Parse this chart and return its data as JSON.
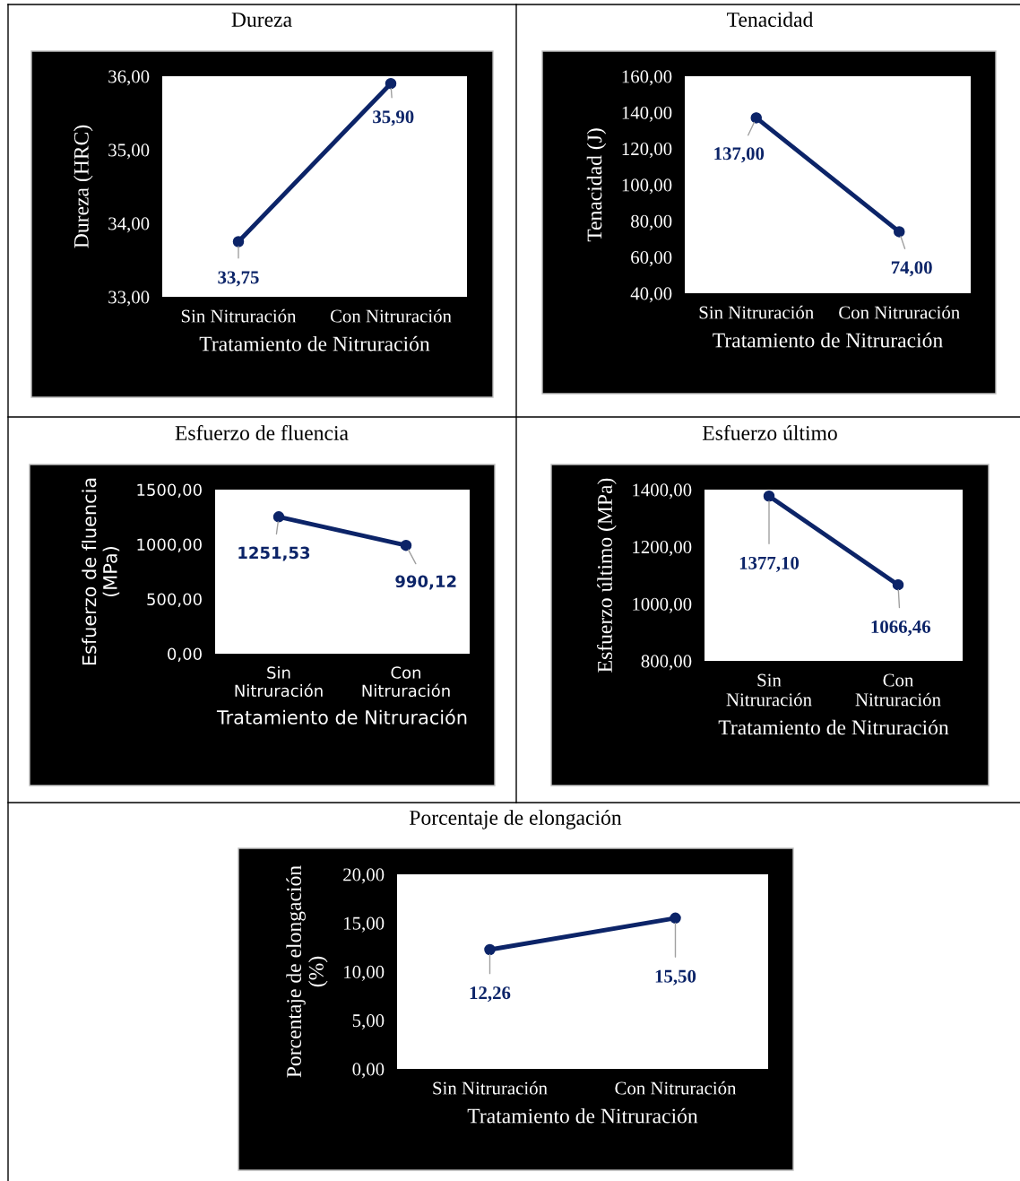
{
  "chart_data": [
    {
      "type": "line",
      "title": "Dureza",
      "xlabel": "Tratamiento de Nitruración",
      "ylabel": "Dureza (HRC)",
      "categories": [
        "Sin Nitruración",
        "Con Nitruración"
      ],
      "series": [
        {
          "color": "#0c2468",
          "values": [
            33.75,
            35.9
          ],
          "value_labels": [
            "33,75",
            "35,90"
          ]
        }
      ],
      "ylim": [
        33,
        36
      ],
      "yticks": [
        {
          "value": 33,
          "label": "33,00"
        },
        {
          "value": 34,
          "label": "34,00"
        },
        {
          "value": 35,
          "label": "35,00"
        },
        {
          "value": 36,
          "label": "36,00"
        }
      ],
      "marker": "circle",
      "line_style": "solid",
      "grid": false
    },
    {
      "type": "line",
      "title": "Tenacidad",
      "xlabel": "Tratamiento de Nitruración",
      "ylabel": "Tenacidad (J)",
      "categories": [
        "Sin Nitruración",
        "Con Nitruración"
      ],
      "series": [
        {
          "color": "#0c2468",
          "values": [
            137,
            74
          ],
          "value_labels": [
            "137,00",
            "74,00"
          ]
        }
      ],
      "ylim": [
        40,
        160
      ],
      "yticks": [
        {
          "value": 40,
          "label": "40,00"
        },
        {
          "value": 60,
          "label": "60,00"
        },
        {
          "value": 80,
          "label": "80,00"
        },
        {
          "value": 100,
          "label": "100,00"
        },
        {
          "value": 120,
          "label": "120,00"
        },
        {
          "value": 140,
          "label": "140,00"
        },
        {
          "value": 160,
          "label": "160,00"
        }
      ],
      "marker": "circle",
      "line_style": "solid",
      "grid": false
    },
    {
      "type": "line",
      "title": "Esfuerzo de fluencia",
      "xlabel": "Tratamiento de Nitruración",
      "ylabel": "Esfuerzo de fluencia (MPa)",
      "categories": [
        "Sin Nitruración",
        "Con Nitruración"
      ],
      "series": [
        {
          "color": "#0c2468",
          "values": [
            1251.53,
            990.12
          ],
          "value_labels": [
            "1251,53",
            "990,12"
          ]
        }
      ],
      "ylim": [
        0,
        1500
      ],
      "yticks": [
        {
          "value": 0,
          "label": "0,00"
        },
        {
          "value": 500,
          "label": "500,00"
        },
        {
          "value": 1000,
          "label": "1000,00"
        },
        {
          "value": 1500,
          "label": "1500,00"
        }
      ],
      "marker": "circle",
      "line_style": "solid",
      "grid": false
    },
    {
      "type": "line",
      "title": "Esfuerzo último",
      "xlabel": "Tratamiento de Nitruración",
      "ylabel": "Esfuerzo último (MPa)",
      "categories": [
        "Sin Nitruración",
        "Con Nitruración"
      ],
      "series": [
        {
          "color": "#0c2468",
          "values": [
            1377.1,
            1066.46
          ],
          "value_labels": [
            "1377,10",
            "1066,46"
          ]
        }
      ],
      "ylim": [
        800,
        1400
      ],
      "yticks": [
        {
          "value": 800,
          "label": "800,00"
        },
        {
          "value": 1000,
          "label": "1000,00"
        },
        {
          "value": 1200,
          "label": "1200,00"
        },
        {
          "value": 1400,
          "label": "1400,00"
        }
      ],
      "marker": "circle",
      "line_style": "solid",
      "grid": false
    },
    {
      "type": "line",
      "title": "Porcentaje de elongación",
      "xlabel": "Tratamiento de Nitruración",
      "ylabel": "Porcentaje de elongación (%)",
      "categories": [
        "Sin Nitruración",
        "Con Nitruración"
      ],
      "series": [
        {
          "color": "#0c2468",
          "values": [
            12.26,
            15.5
          ],
          "value_labels": [
            "12,26",
            "15,50"
          ]
        }
      ],
      "ylim": [
        0,
        20
      ],
      "yticks": [
        {
          "value": 0,
          "label": "0,00"
        },
        {
          "value": 5,
          "label": "5,00"
        },
        {
          "value": 10,
          "label": "10,00"
        },
        {
          "value": 15,
          "label": "15,00"
        },
        {
          "value": 20,
          "label": "20,00"
        }
      ],
      "marker": "circle",
      "line_style": "solid",
      "grid": false
    }
  ]
}
